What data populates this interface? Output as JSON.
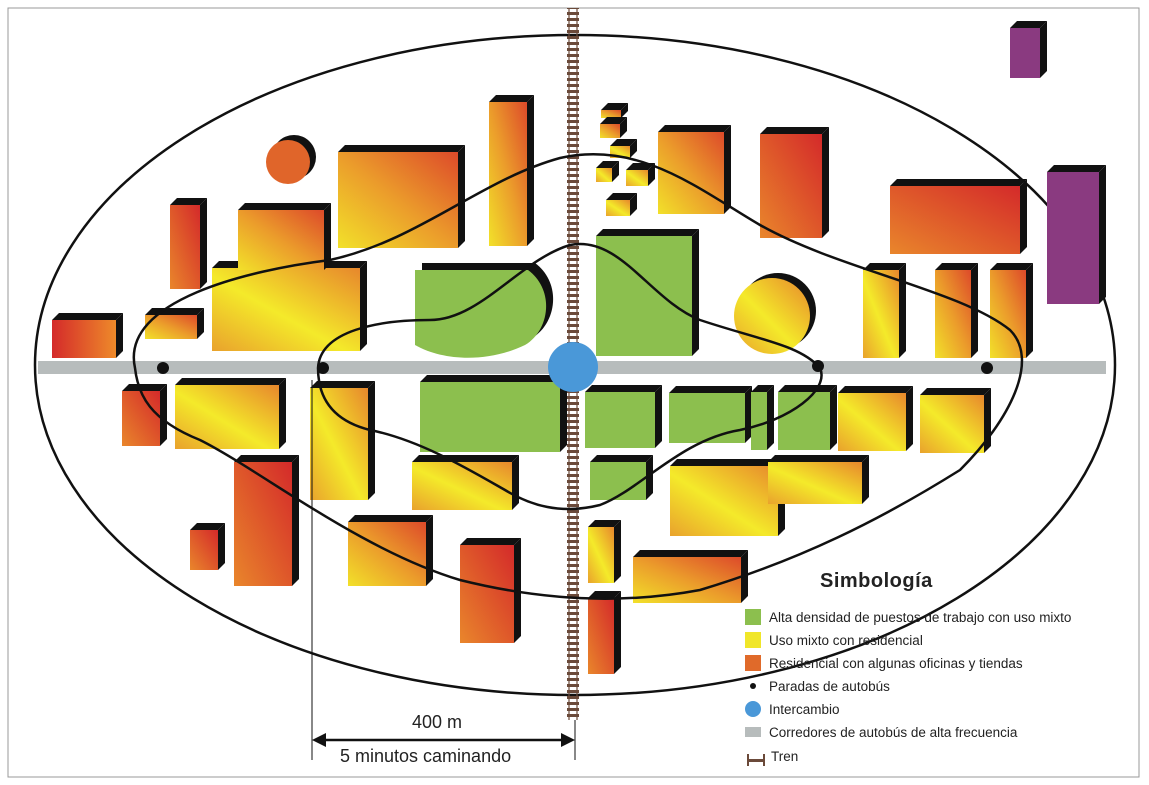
{
  "colors": {
    "green": "#8cbf4e",
    "yellow": "#f0e629",
    "orange": "#e58a2a",
    "red": "#d93a2b",
    "purple": "#8a3a80",
    "bus_corridor": "#b7bcbc",
    "interchange": "#4a98d8",
    "rail": "#6b4a3a"
  },
  "scale": {
    "distance": "400 m",
    "walk_time": "5 minutos caminando"
  },
  "legend": {
    "title": "Simbología",
    "items": [
      {
        "key": "green",
        "label": "Alta densidad de puestos de trabajo con uso mixto"
      },
      {
        "key": "yellow",
        "label": "Uso mixto con residencial"
      },
      {
        "key": "orange",
        "label": "Residencial con algunas oficinas y tiendas"
      },
      {
        "key": "stop",
        "label": "Paradas de autobús"
      },
      {
        "key": "interchange",
        "label": "Intercambio"
      },
      {
        "key": "corridor",
        "label": "Corredores de autobús de alta frecuencia"
      },
      {
        "key": "rail",
        "label": "Tren"
      }
    ]
  }
}
